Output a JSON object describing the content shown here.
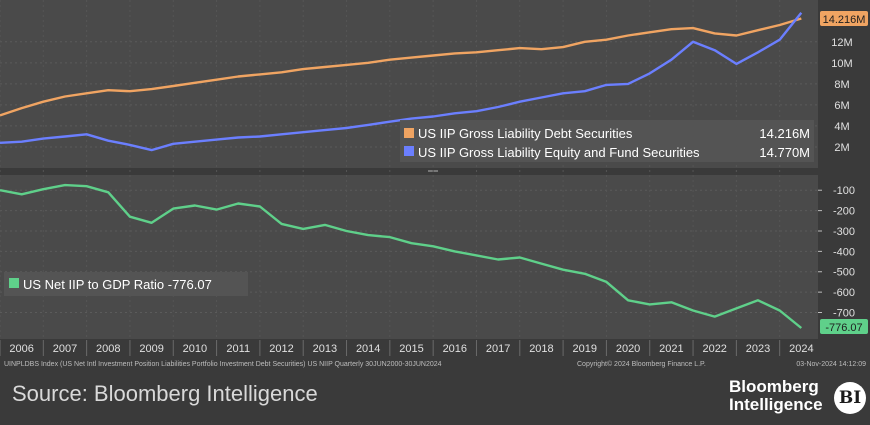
{
  "chart_data": [
    {
      "type": "line",
      "panel": "top",
      "x": [
        2005.5,
        2006,
        2006.5,
        2007,
        2007.5,
        2008,
        2008.5,
        2009,
        2009.5,
        2010,
        2010.5,
        2011,
        2011.5,
        2012,
        2012.5,
        2013,
        2013.5,
        2014,
        2014.5,
        2015,
        2015.5,
        2016,
        2016.5,
        2017,
        2017.5,
        2018,
        2018.5,
        2019,
        2019.5,
        2020,
        2020.5,
        2021,
        2021.5,
        2022,
        2022.5,
        2023,
        2023.5,
        2024
      ],
      "series": [
        {
          "name": "US IIP Gross Liability Debt Securities",
          "color": "#f0a462",
          "last_value": "14.216M",
          "values": [
            5.0,
            5.7,
            6.3,
            6.8,
            7.1,
            7.4,
            7.3,
            7.5,
            7.8,
            8.1,
            8.4,
            8.7,
            8.9,
            9.1,
            9.4,
            9.6,
            9.8,
            10.0,
            10.3,
            10.5,
            10.7,
            10.9,
            11.0,
            11.2,
            11.4,
            11.3,
            11.5,
            12.0,
            12.2,
            12.6,
            12.9,
            13.2,
            13.3,
            12.8,
            12.6,
            13.1,
            13.6,
            14.216
          ]
        },
        {
          "name": "US IIP Gross Liability Equity and Fund Securities",
          "color": "#6b7fff",
          "last_value": "14.770M",
          "values": [
            2.4,
            2.5,
            2.8,
            3.0,
            3.2,
            2.6,
            2.2,
            1.7,
            2.3,
            2.5,
            2.7,
            2.9,
            3.0,
            3.2,
            3.4,
            3.6,
            3.8,
            4.1,
            4.4,
            4.7,
            4.9,
            5.2,
            5.4,
            5.8,
            6.3,
            6.7,
            7.1,
            7.3,
            7.9,
            8.0,
            9.0,
            10.3,
            12.0,
            11.2,
            9.9,
            11.0,
            12.2,
            14.77
          ]
        }
      ],
      "y_ticks": [
        "2M",
        "4M",
        "6M",
        "8M",
        "10M",
        "12M"
      ],
      "ylim": [
        0,
        15.5
      ]
    },
    {
      "type": "line",
      "panel": "bottom",
      "x": [
        2005.5,
        2006,
        2006.5,
        2007,
        2007.5,
        2008,
        2008.5,
        2009,
        2009.5,
        2010,
        2010.5,
        2011,
        2011.5,
        2012,
        2012.5,
        2013,
        2013.5,
        2014,
        2014.5,
        2015,
        2015.5,
        2016,
        2016.5,
        2017,
        2017.5,
        2018,
        2018.5,
        2019,
        2019.5,
        2020,
        2020.5,
        2021,
        2021.5,
        2022,
        2022.5,
        2023,
        2023.5,
        2024
      ],
      "series": [
        {
          "name": "US Net IIP to GDP Ratio",
          "color": "#5fd08a",
          "last_value": "-776.07",
          "values": [
            -100,
            -120,
            -95,
            -75,
            -80,
            -110,
            -230,
            -260,
            -190,
            -175,
            -195,
            -165,
            -180,
            -265,
            -290,
            -270,
            -300,
            -320,
            -330,
            -360,
            -375,
            -400,
            -420,
            -440,
            -430,
            -460,
            -490,
            -510,
            -550,
            -640,
            -660,
            -650,
            -690,
            -720,
            -680,
            -640,
            -690,
            -776.07
          ]
        }
      ],
      "y_ticks": [
        "-100",
        "-200",
        "-300",
        "-400",
        "-500",
        "-600",
        "-700"
      ],
      "ylim": [
        -830,
        -40
      ]
    }
  ],
  "x_axis_labels": [
    "2006",
    "2007",
    "2008",
    "2009",
    "2010",
    "2011",
    "2012",
    "2013",
    "2014",
    "2015",
    "2016",
    "2017",
    "2018",
    "2019",
    "2020",
    "2021",
    "2022",
    "2023",
    "2024"
  ],
  "legend_top": [
    {
      "label": "US IIP Gross Liability Debt Securities",
      "value": "14.216M",
      "color": "#f0a462"
    },
    {
      "label": "US IIP Gross Liability Equity and Fund Securities",
      "value": "14.770M",
      "color": "#6b7fff"
    }
  ],
  "legend_bottom": [
    {
      "label": "US Net IIP to GDP Ratio -776.07",
      "color": "#5fd08a"
    }
  ],
  "value_tags": {
    "top": {
      "text": "14.216M",
      "color": "#f0a462"
    },
    "bottom": {
      "text": "-776.07",
      "color": "#5fd08a"
    }
  },
  "footnote_left": "UINPLDBS Index (US Net Intl Investment Position Liabilities Portfolio Investment Debt Securities) US NIIP  Quarterly 30JUN2000-30JUN2024",
  "footnote_mid": "Copyright© 2024 Bloomberg Finance L.P.",
  "footnote_right": "03-Nov-2024 14:12:09",
  "source": "Source: Bloomberg Intelligence",
  "brand": {
    "line1": "Bloomberg",
    "line2": "Intelligence",
    "badge": "BI"
  }
}
